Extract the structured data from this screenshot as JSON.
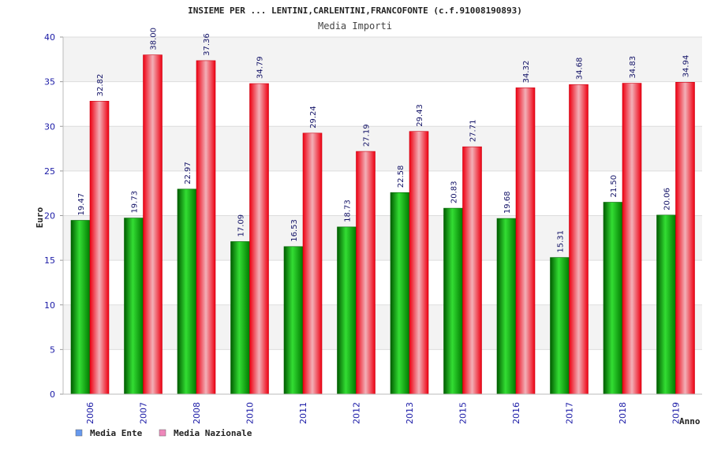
{
  "chart_data": {
    "type": "bar",
    "title": "INSIEME PER ... LENTINI,CARLENTINI,FRANCOFONTE (c.f.91008190893)",
    "subtitle": "Media Importi",
    "ylabel": "Euro",
    "xlabel": "Anno",
    "ylim": [
      0,
      40
    ],
    "yticks": [
      0,
      5,
      10,
      15,
      20,
      25,
      30,
      35,
      40
    ],
    "grid": true,
    "legend_position": "bottom-left",
    "categories": [
      "2006",
      "2007",
      "2008",
      "2010",
      "2011",
      "2012",
      "2013",
      "2015",
      "2016",
      "2017",
      "2018",
      "2019"
    ],
    "series": [
      {
        "name": "Media Ente",
        "color": "#00a000",
        "legend_color": "#6699ee",
        "values": [
          19.47,
          19.73,
          22.97,
          17.09,
          16.53,
          18.73,
          22.58,
          20.83,
          19.68,
          15.31,
          21.5,
          20.06
        ],
        "labels": [
          "19.47",
          "19.73",
          "22.97",
          "17.09",
          "16.53",
          "18.73",
          "22.58",
          "20.83",
          "19.68",
          "15.31",
          "21.50",
          "20.06"
        ]
      },
      {
        "name": "Media Nazionale",
        "color": "#ee1122",
        "legend_color": "#ee88bb",
        "values": [
          32.82,
          38.0,
          37.36,
          34.79,
          29.24,
          27.19,
          29.43,
          27.71,
          34.32,
          34.68,
          34.83,
          34.94
        ],
        "labels": [
          "32.82",
          "38.00",
          "37.36",
          "34.79",
          "29.24",
          "27.19",
          "29.43",
          "27.71",
          "34.32",
          "34.68",
          "34.83",
          "34.94"
        ]
      }
    ]
  }
}
